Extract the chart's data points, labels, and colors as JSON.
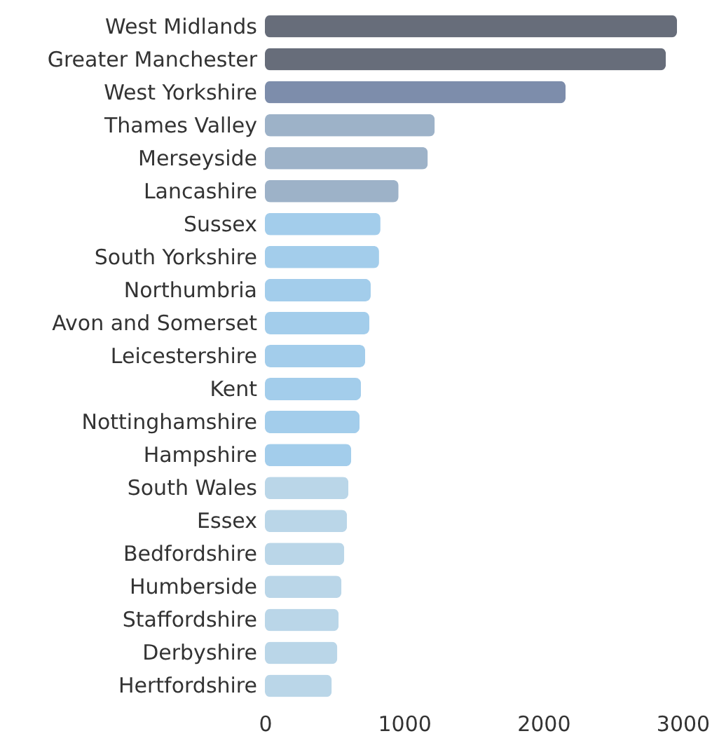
{
  "chart_data": {
    "type": "bar",
    "orientation": "horizontal",
    "categories": [
      "West Midlands",
      "Greater Manchester",
      "West Yorkshire",
      "Thames Valley",
      "Merseyside",
      "Lancashire",
      "Sussex",
      "South Yorkshire",
      "Northumbria",
      "Avon and Somerset",
      "Leicestershire",
      "Kent",
      "Nottinghamshire",
      "Hampshire",
      "South Wales",
      "Essex",
      "Bedfordshire",
      "Humberside",
      "Staffordshire",
      "Derbyshire",
      "Hertfordshire"
    ],
    "values": [
      2960,
      2880,
      2160,
      1220,
      1170,
      960,
      830,
      820,
      760,
      750,
      720,
      690,
      680,
      620,
      600,
      590,
      570,
      550,
      530,
      520,
      480
    ],
    "colors": [
      "#676d7a",
      "#676d7a",
      "#7d8dab",
      "#9db2c8",
      "#9db2c8",
      "#9db2c8",
      "#a3cdeb",
      "#a3cdeb",
      "#a3cdeb",
      "#a3cdeb",
      "#a3cdeb",
      "#a3cdeb",
      "#a3cdeb",
      "#a3cdeb",
      "#bad6e8",
      "#bad6e8",
      "#bad6e8",
      "#bad6e8",
      "#bad6e8",
      "#bad6e8",
      "#bad6e8"
    ],
    "xlim": [
      0,
      3000
    ],
    "xticks": [
      0,
      1000,
      2000,
      3000
    ],
    "grid": false
  }
}
